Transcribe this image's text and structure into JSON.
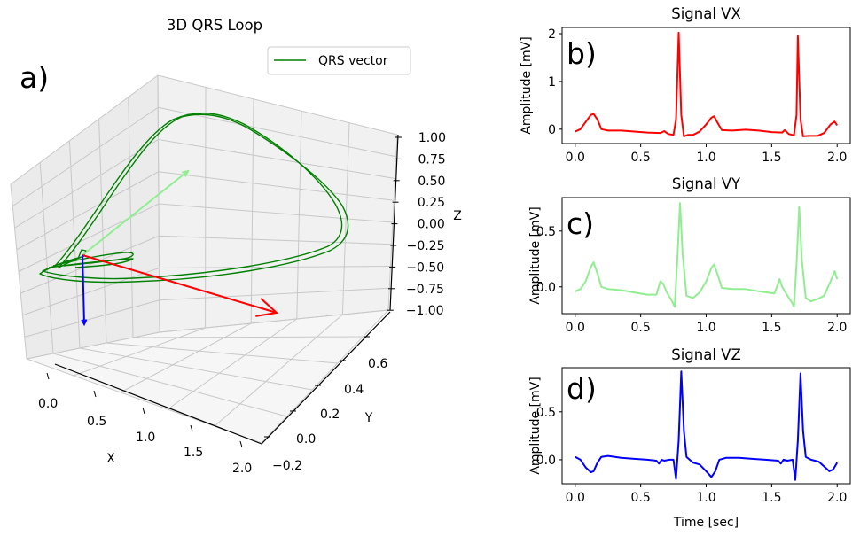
{
  "figure": {
    "panels": [
      "a)",
      "b)",
      "c)",
      "d)"
    ]
  },
  "chart_data": [
    {
      "type": "line3d",
      "panel_label": "a)",
      "title": "3D QRS Loop",
      "xlabel": "X",
      "ylabel": "Y",
      "zlabel": "Z",
      "xlim": [
        -0.25,
        2.1
      ],
      "ylim": [
        -0.25,
        0.75
      ],
      "zlim": [
        -1.0,
        1.0
      ],
      "xticks": [
        "0.0",
        "0.5",
        "1.0",
        "1.5",
        "2.0"
      ],
      "yticks": [
        "−0.2",
        "0.0",
        "0.2",
        "0.4",
        "0.6"
      ],
      "zticks": [
        "1.00",
        "0.75",
        "0.50",
        "0.25",
        "0.00",
        "−0.25",
        "−0.50",
        "−0.75",
        "−1.00"
      ],
      "legend": {
        "entries": [
          {
            "label": "QRS vector",
            "color": "#008000"
          }
        ],
        "placement": "top-right"
      },
      "series": [
        {
          "name": "QRS vector",
          "color": "#008000",
          "loops": 2,
          "points_xyz": [
            [
              0.05,
              0.0,
              0.0
            ],
            [
              0.3,
              0.1,
              0.3
            ],
            [
              0.5,
              0.2,
              0.7
            ],
            [
              0.8,
              0.25,
              0.95
            ],
            [
              1.1,
              0.25,
              1.0
            ],
            [
              1.5,
              0.2,
              0.75
            ],
            [
              1.95,
              0.1,
              0.25
            ],
            [
              2.0,
              0.05,
              -0.1
            ],
            [
              1.6,
              0.0,
              -0.35
            ],
            [
              1.0,
              -0.05,
              -0.5
            ],
            [
              0.4,
              -0.1,
              -0.55
            ],
            [
              0.0,
              -0.1,
              -0.4
            ],
            [
              0.05,
              0.0,
              0.0
            ]
          ]
        }
      ],
      "arrows": [
        {
          "name": "x-vector",
          "color": "#ff0000",
          "from": [
            0,
            0,
            0
          ],
          "to": [
            1.0,
            0,
            0
          ]
        },
        {
          "name": "y-vector",
          "color": "#90ee90",
          "from": [
            0,
            0,
            0
          ],
          "to": [
            0,
            0.5,
            0
          ]
        },
        {
          "name": "z-vector",
          "color": "#0000ff",
          "from": [
            0,
            0,
            0
          ],
          "to": [
            0,
            0,
            -0.6
          ]
        }
      ]
    },
    {
      "type": "line",
      "panel_label": "b)",
      "title": "Signal VX",
      "xlabel": "",
      "ylabel": "Amplitude [mV]",
      "color": "#ff0000",
      "xlim": [
        -0.1,
        2.1
      ],
      "ylim": [
        -0.3,
        2.13
      ],
      "xticks": [
        0.0,
        0.5,
        1.0,
        1.5,
        2.0
      ],
      "xtick_labels": [
        "0.0",
        "0.5",
        "1.0",
        "1.5",
        "2.0"
      ],
      "yticks": [
        0,
        1,
        2
      ],
      "ytick_labels": [
        "0",
        "1",
        "2"
      ],
      "x": [
        0.0,
        0.04,
        0.08,
        0.12,
        0.14,
        0.17,
        0.2,
        0.25,
        0.35,
        0.45,
        0.55,
        0.65,
        0.68,
        0.71,
        0.75,
        0.77,
        0.79,
        0.81,
        0.83,
        0.86,
        0.9,
        0.95,
        1.0,
        1.04,
        1.06,
        1.09,
        1.12,
        1.2,
        1.3,
        1.4,
        1.5,
        1.58,
        1.6,
        1.63,
        1.67,
        1.69,
        1.7,
        1.72,
        1.74,
        1.78,
        1.85,
        1.9,
        1.95,
        1.98,
        2.0
      ],
      "values": [
        -0.05,
        0.0,
        0.15,
        0.3,
        0.32,
        0.2,
        0.0,
        -0.03,
        -0.03,
        -0.05,
        -0.07,
        -0.08,
        -0.04,
        -0.1,
        -0.12,
        0.2,
        2.02,
        0.3,
        -0.15,
        -0.12,
        -0.12,
        -0.05,
        0.1,
        0.24,
        0.27,
        0.12,
        -0.02,
        -0.03,
        -0.01,
        -0.03,
        -0.06,
        -0.07,
        -0.02,
        -0.1,
        -0.13,
        0.3,
        1.95,
        0.2,
        -0.15,
        -0.14,
        -0.14,
        -0.08,
        0.1,
        0.16,
        0.08
      ]
    },
    {
      "type": "line",
      "panel_label": "c)",
      "title": "Signal VY",
      "xlabel": "",
      "ylabel": "Amplitude [mV]",
      "color": "#90ee90",
      "xlim": [
        -0.1,
        2.1
      ],
      "ylim": [
        -0.24,
        0.8
      ],
      "xticks": [
        0.0,
        0.5,
        1.0,
        1.5,
        2.0
      ],
      "xtick_labels": [
        "0.0",
        "0.5",
        "1.0",
        "1.5",
        "2.0"
      ],
      "yticks": [
        0.0,
        0.5
      ],
      "ytick_labels": [
        "0.0",
        "0.5"
      ],
      "x": [
        0.0,
        0.04,
        0.08,
        0.12,
        0.14,
        0.17,
        0.2,
        0.25,
        0.35,
        0.45,
        0.55,
        0.62,
        0.65,
        0.67,
        0.7,
        0.74,
        0.76,
        0.78,
        0.8,
        0.82,
        0.85,
        0.9,
        0.95,
        1.0,
        1.04,
        1.06,
        1.09,
        1.12,
        1.2,
        1.3,
        1.4,
        1.52,
        1.54,
        1.56,
        1.58,
        1.62,
        1.66,
        1.67,
        1.69,
        1.71,
        1.73,
        1.76,
        1.8,
        1.85,
        1.9,
        1.95,
        1.98,
        2.0
      ],
      "values": [
        -0.04,
        -0.02,
        0.05,
        0.18,
        0.22,
        0.12,
        0.0,
        -0.02,
        -0.03,
        -0.05,
        -0.07,
        -0.07,
        0.05,
        0.03,
        -0.05,
        -0.13,
        -0.18,
        0.25,
        0.75,
        0.3,
        -0.08,
        -0.1,
        -0.05,
        0.05,
        0.17,
        0.2,
        0.1,
        -0.01,
        -0.02,
        -0.02,
        -0.04,
        -0.06,
        0.0,
        0.07,
        0.0,
        -0.08,
        -0.15,
        -0.18,
        0.2,
        0.72,
        0.25,
        -0.1,
        -0.13,
        -0.11,
        -0.08,
        0.05,
        0.14,
        0.07
      ]
    },
    {
      "type": "line",
      "panel_label": "d)",
      "title": "Signal VZ",
      "xlabel": "Time [sec]",
      "ylabel": "Amplitude [mV]",
      "color": "#0000ff",
      "xlim": [
        -0.1,
        2.1
      ],
      "ylim": [
        -0.25,
        0.96
      ],
      "xticks": [
        0.0,
        0.5,
        1.0,
        1.5,
        2.0
      ],
      "xtick_labels": [
        "0.0",
        "0.5",
        "1.0",
        "1.5",
        "2.0"
      ],
      "yticks": [
        0.0,
        0.5
      ],
      "ytick_labels": [
        "0.0",
        "0.5"
      ],
      "x": [
        0.0,
        0.04,
        0.08,
        0.12,
        0.14,
        0.17,
        0.2,
        0.25,
        0.35,
        0.45,
        0.55,
        0.62,
        0.64,
        0.66,
        0.68,
        0.72,
        0.75,
        0.77,
        0.79,
        0.81,
        0.83,
        0.85,
        0.9,
        0.95,
        1.0,
        1.04,
        1.07,
        1.1,
        1.15,
        1.25,
        1.35,
        1.45,
        1.55,
        1.57,
        1.59,
        1.62,
        1.66,
        1.68,
        1.7,
        1.72,
        1.74,
        1.76,
        1.8,
        1.86,
        1.9,
        1.94,
        1.97,
        2.0
      ],
      "values": [
        0.03,
        0.0,
        -0.08,
        -0.13,
        -0.12,
        -0.03,
        0.03,
        0.04,
        0.02,
        0.01,
        0.0,
        -0.01,
        -0.04,
        0.0,
        -0.01,
        0.0,
        0.0,
        -0.2,
        0.2,
        0.92,
        0.3,
        0.03,
        -0.03,
        -0.05,
        -0.12,
        -0.18,
        -0.12,
        0.0,
        0.02,
        0.02,
        0.01,
        0.0,
        -0.01,
        -0.04,
        0.0,
        -0.01,
        0.0,
        -0.21,
        0.2,
        0.9,
        0.3,
        0.03,
        0.0,
        -0.02,
        -0.07,
        -0.12,
        -0.1,
        -0.03
      ]
    }
  ]
}
